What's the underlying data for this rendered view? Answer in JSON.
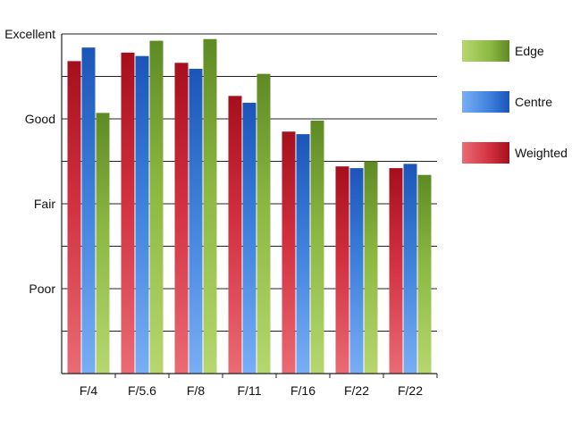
{
  "chart_data": {
    "type": "bar",
    "categories": [
      "F/4",
      "F/5.6",
      "F/8",
      "F/11",
      "F/16",
      "F/22",
      "F/22"
    ],
    "series": [
      {
        "name": "Weighted",
        "values": [
          3.68,
          3.78,
          3.66,
          3.27,
          2.85,
          2.44,
          2.42
        ]
      },
      {
        "name": "Centre",
        "values": [
          3.84,
          3.74,
          3.59,
          3.19,
          2.82,
          2.42,
          2.47
        ]
      },
      {
        "name": "Edge",
        "values": [
          3.07,
          3.92,
          3.94,
          3.53,
          2.98,
          2.5,
          2.34
        ]
      }
    ],
    "y_tick_labels": [
      {
        "value": 1,
        "label": "Poor"
      },
      {
        "value": 2,
        "label": "Fair"
      },
      {
        "value": 3,
        "label": "Good"
      },
      {
        "value": 4,
        "label": "Excellent"
      }
    ],
    "ylim": [
      0,
      4
    ],
    "grid": true,
    "legend": {
      "placement": "right",
      "entries": [
        "Edge",
        "Centre",
        "Weighted"
      ]
    },
    "colors": {
      "Weighted": {
        "dark": "#a50f1c",
        "mid": "#d1303f",
        "light": "#ea6b74"
      },
      "Centre": {
        "dark": "#1b55b8",
        "mid": "#3d7fdb",
        "light": "#79aef5"
      },
      "Edge": {
        "dark": "#5e8a24",
        "mid": "#8cb842",
        "light": "#b6d76f"
      }
    }
  }
}
